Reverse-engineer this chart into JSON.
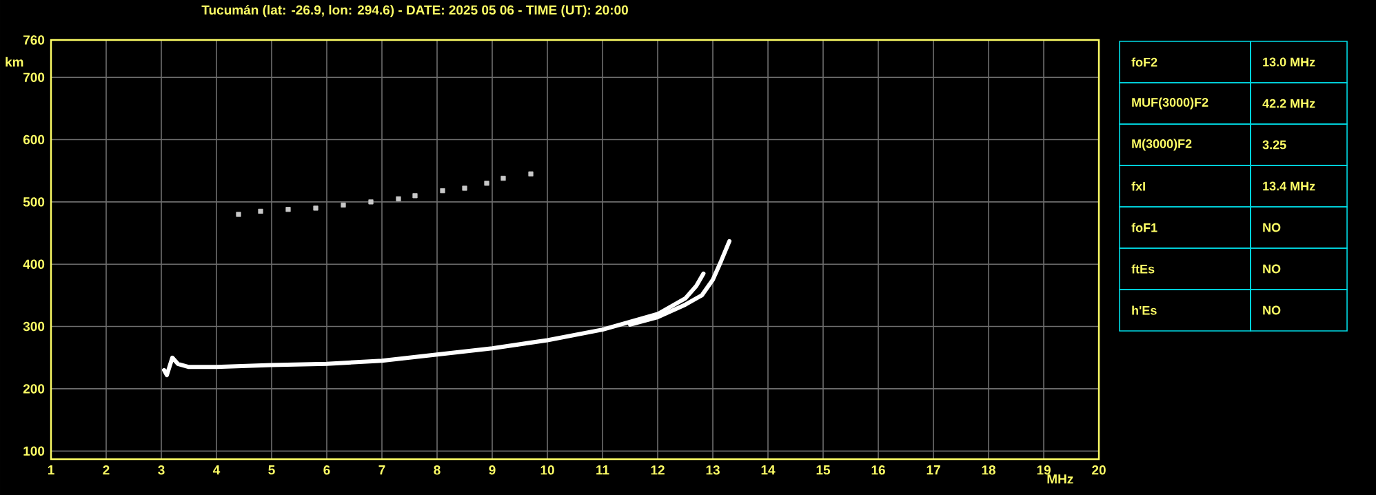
{
  "chart_data": [
    {
      "type": "line",
      "title": "Tucumán (lat: -26.9, lon: 294.6) - DATE: 2025 05 06 - TIME (UT): 20:00",
      "xlabel": "MHz",
      "ylabel": "km",
      "xlim": [
        1,
        20
      ],
      "xticks": [
        1,
        2,
        3,
        4,
        5,
        6,
        7,
        8,
        9,
        10,
        11,
        12,
        13,
        14,
        15,
        16,
        17,
        18,
        19,
        20
      ],
      "ylim": [
        87,
        760
      ],
      "yticks": [
        100,
        200,
        300,
        400,
        500,
        600,
        700,
        760
      ],
      "grid": true,
      "series": [
        {
          "type": "line",
          "marker": "none",
          "color": "#ffffff",
          "x": [
            3.05,
            3.1,
            3.2,
            3.3,
            3.5,
            4,
            5,
            6,
            7,
            8,
            9,
            10,
            11,
            12,
            12.5,
            12.7,
            12.83
          ],
          "values": [
            230,
            222,
            250,
            240,
            235,
            235,
            238,
            240,
            245,
            255,
            265,
            278,
            295,
            320,
            345,
            365,
            385
          ]
        },
        {
          "type": "line",
          "marker": "none",
          "color": "#ffffff",
          "x": [
            11.5,
            12.0,
            12.5,
            12.8,
            13.0,
            13.15,
            13.3
          ],
          "values": [
            303,
            315,
            335,
            350,
            375,
            405,
            437
          ]
        },
        {
          "type": "scatter",
          "marker": "square",
          "color": "#c8c8c8",
          "x": [
            4.4,
            4.8,
            5.3,
            5.8,
            6.3,
            6.8,
            7.3,
            7.6,
            8.1,
            8.5,
            8.9,
            9.2,
            9.7
          ],
          "values": [
            480,
            485,
            488,
            490,
            495,
            500,
            505,
            510,
            518,
            522,
            530,
            538,
            545
          ]
        }
      ]
    },
    {
      "type": "other",
      "annotations": [
        "foF2",
        "13.0 MHz",
        "MUF(3000)F2",
        "42.2 MHz",
        "M(3000)F2",
        "3.25",
        "fxI",
        "13.4 MHz",
        "foF1",
        "NO",
        "ftEs",
        "NO",
        "h'Es",
        "NO"
      ]
    }
  ]
}
